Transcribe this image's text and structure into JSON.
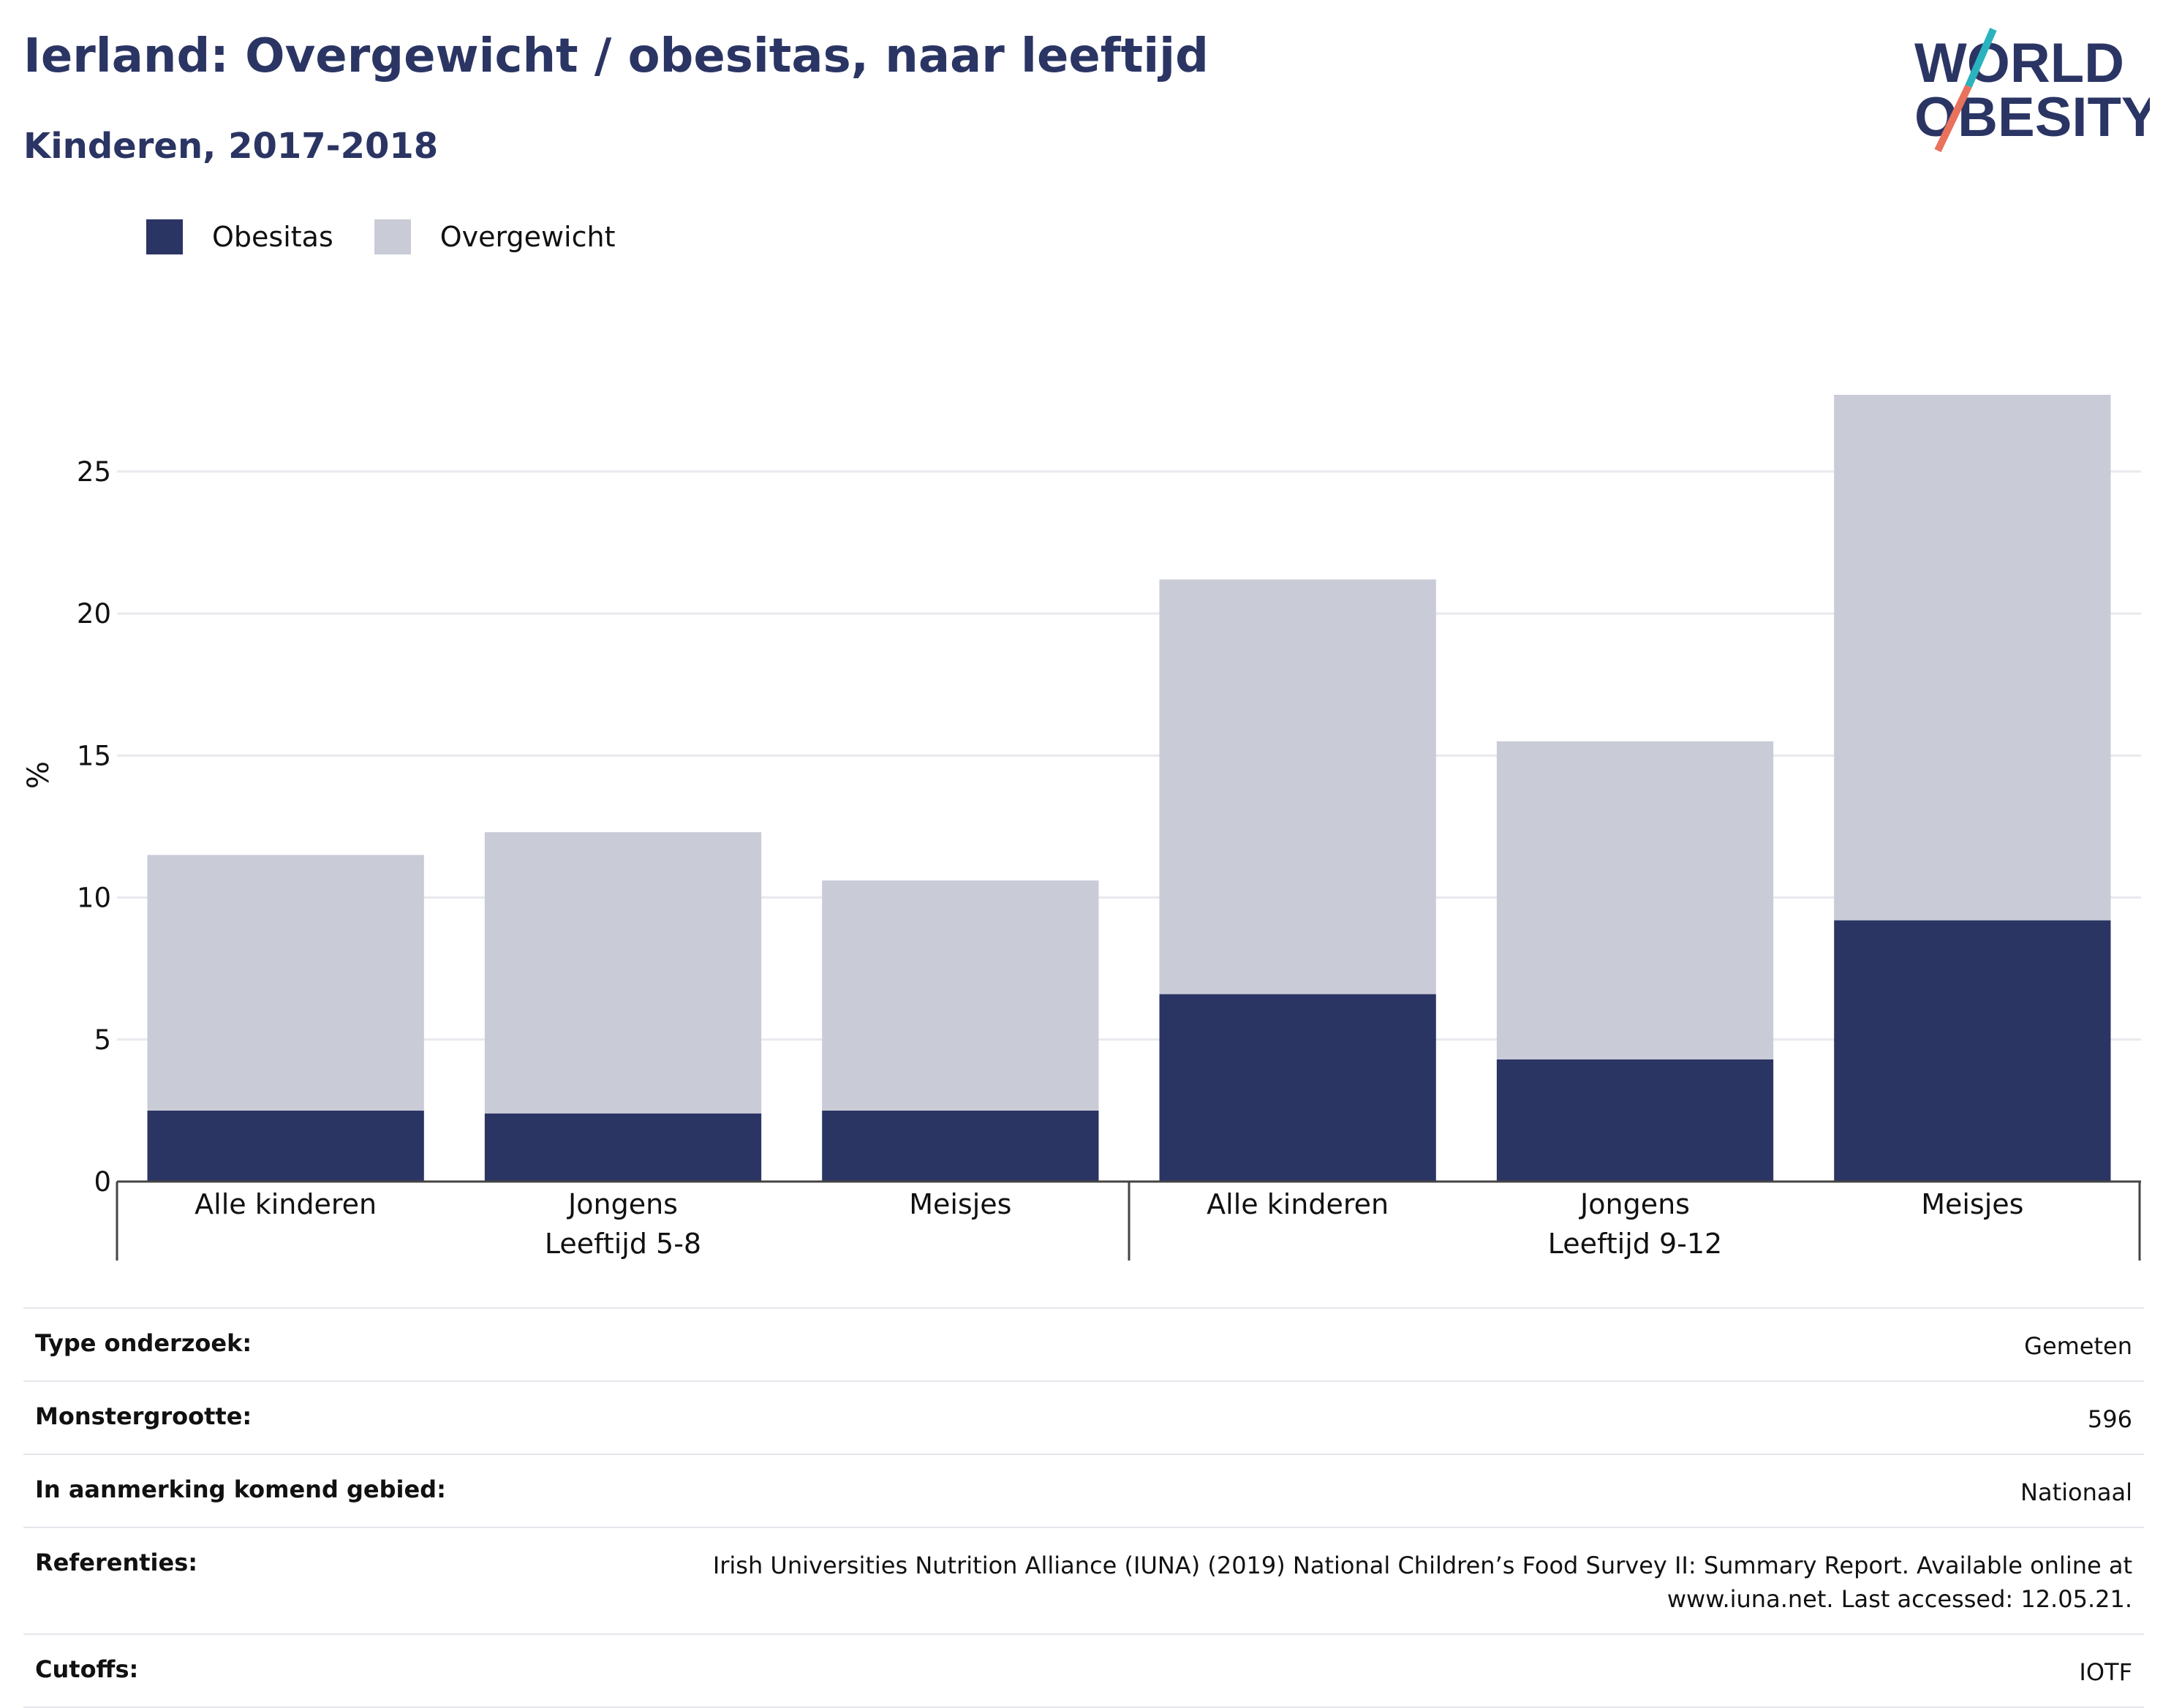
{
  "header": {
    "title": "Ierland: Overgewicht / obesitas, naar leeftijd",
    "subtitle": "Kinderen, 2017-2018"
  },
  "logo": {
    "line1": "WORLD",
    "line2": "OBESITY",
    "colors": {
      "text": "#2b3564",
      "slash_top": "#2ab3bf",
      "slash_bottom": "#e8725c"
    }
  },
  "legend": {
    "items": [
      {
        "label": "Obesitas",
        "color": "#2b3564"
      },
      {
        "label": "Overgewicht",
        "color": "#c9cbd7"
      }
    ]
  },
  "chart_data": {
    "type": "bar",
    "stacked": true,
    "ylabel": "%",
    "ylim": [
      0,
      28
    ],
    "yticks": [
      0,
      5,
      10,
      15,
      20,
      25
    ],
    "grid": true,
    "legend_position": "top-left",
    "categories": [
      "Alle kinderen",
      "Jongens",
      "Meisjes",
      "Alle kinderen",
      "Jongens",
      "Meisjes"
    ],
    "groups": [
      {
        "label": "Leeftijd 5-8",
        "categories": [
          "Alle kinderen",
          "Jongens",
          "Meisjes"
        ]
      },
      {
        "label": "Leeftijd 9-12",
        "categories": [
          "Alle kinderen",
          "Jongens",
          "Meisjes"
        ]
      }
    ],
    "series": [
      {
        "name": "Obesitas",
        "color": "#2b3564",
        "values": [
          2.5,
          2.4,
          2.5,
          6.6,
          4.3,
          9.2
        ]
      },
      {
        "name": "Overgewicht",
        "color": "#c9cbd7",
        "values": [
          9.0,
          9.9,
          8.1,
          14.6,
          11.2,
          18.5
        ]
      }
    ]
  },
  "info": {
    "rows": [
      {
        "label": "Type onderzoek:",
        "value": "Gemeten"
      },
      {
        "label": "Monstergrootte:",
        "value": "596"
      },
      {
        "label": "In aanmerking komend gebied:",
        "value": "Nationaal"
      },
      {
        "label": "Referenties:",
        "value": "Irish Universities Nutrition Alliance (IUNA) (2019) National Children’s Food Survey II: Summary Report. Available online at www.iuna.net. Last accessed: 12.05.21."
      },
      {
        "label": "Cutoffs:",
        "value": "IOTF"
      }
    ]
  }
}
